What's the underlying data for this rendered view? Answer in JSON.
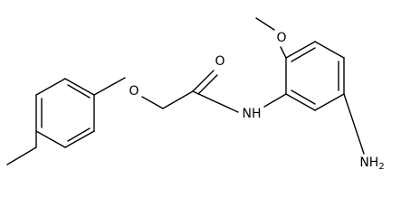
{
  "atoms": [
    {
      "label": "O"
    },
    {
      "label": "O"
    },
    {
      "label": "O"
    },
    {
      "label": "NH"
    },
    {
      "label": "NH",
      "subscript": "2"
    }
  ]
}
